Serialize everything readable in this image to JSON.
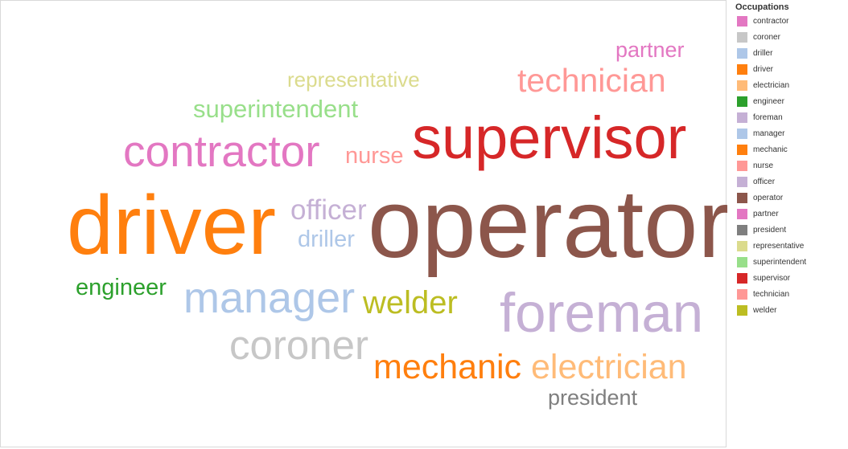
{
  "chart_data": {
    "type": "wordcloud",
    "legend_title": "Occupations",
    "legend_placement": "right",
    "legend": [
      {
        "label": "contractor",
        "color": "#e377c2"
      },
      {
        "label": "coroner",
        "color": "#c7c7c7"
      },
      {
        "label": "driller",
        "color": "#aec7e8"
      },
      {
        "label": "driver",
        "color": "#ff7f0e"
      },
      {
        "label": "electrician",
        "color": "#ffbb78"
      },
      {
        "label": "engineer",
        "color": "#2ca02c"
      },
      {
        "label": "foreman",
        "color": "#c5b0d5"
      },
      {
        "label": "manager",
        "color": "#aec7e8"
      },
      {
        "label": "mechanic",
        "color": "#ff7f0e"
      },
      {
        "label": "nurse",
        "color": "#ff9896"
      },
      {
        "label": "officer",
        "color": "#c5b0d5"
      },
      {
        "label": "operator",
        "color": "#8c564b"
      },
      {
        "label": "partner",
        "color": "#e377c2"
      },
      {
        "label": "president",
        "color": "#7f7f7f"
      },
      {
        "label": "representative",
        "color": "#dbdb8d"
      },
      {
        "label": "superintendent",
        "color": "#98df8a"
      },
      {
        "label": "supervisor",
        "color": "#d62728"
      },
      {
        "label": "technician",
        "color": "#ff9896"
      },
      {
        "label": "welder",
        "color": "#bcbd22"
      }
    ],
    "words": [
      {
        "text": "operator",
        "color": "#8c564b",
        "weight": 100
      },
      {
        "text": "driver",
        "color": "#ff7f0e",
        "weight": 86
      },
      {
        "text": "supervisor",
        "color": "#d62728",
        "weight": 67
      },
      {
        "text": "foreman",
        "color": "#c5b0d5",
        "weight": 62
      },
      {
        "text": "contractor",
        "color": "#e377c2",
        "weight": 49
      },
      {
        "text": "manager",
        "color": "#aec7e8",
        "weight": 49
      },
      {
        "text": "coroner",
        "color": "#c7c7c7",
        "weight": 45
      },
      {
        "text": "mechanic",
        "color": "#ff7f0e",
        "weight": 39
      },
      {
        "text": "electrician",
        "color": "#ffbb78",
        "weight": 38
      },
      {
        "text": "technician",
        "color": "#ff9896",
        "weight": 36
      },
      {
        "text": "welder",
        "color": "#bcbd22",
        "weight": 36
      },
      {
        "text": "officer",
        "color": "#c5b0d5",
        "weight": 32
      },
      {
        "text": "superintendent",
        "color": "#98df8a",
        "weight": 29
      },
      {
        "text": "engineer",
        "color": "#2ca02c",
        "weight": 27
      },
      {
        "text": "nurse",
        "color": "#ff9896",
        "weight": 27
      },
      {
        "text": "driller",
        "color": "#aec7e8",
        "weight": 25
      },
      {
        "text": "president",
        "color": "#7f7f7f",
        "weight": 25
      },
      {
        "text": "representative",
        "color": "#dbdb8d",
        "weight": 24
      },
      {
        "text": "partner",
        "color": "#e377c2",
        "weight": 24
      }
    ]
  }
}
